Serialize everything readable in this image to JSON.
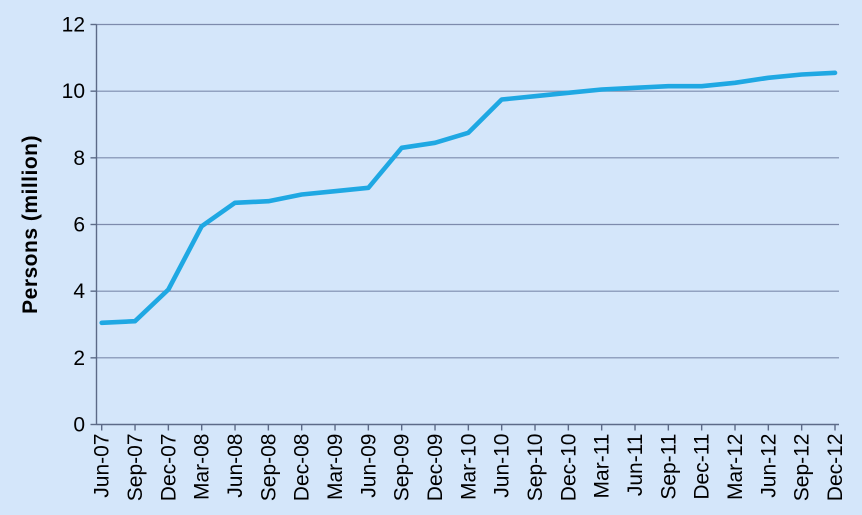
{
  "chart_data": {
    "type": "line",
    "title": "",
    "ylabel": "Persons (million)",
    "xlabel": "",
    "categories": [
      "Jun-07",
      "Sep-07",
      "Dec-07",
      "Mar-08",
      "Jun-08",
      "Sep-08",
      "Dec-08",
      "Mar-09",
      "Jun-09",
      "Sep-09",
      "Dec-09",
      "Mar-10",
      "Jun-10",
      "Sep-10",
      "Dec-10",
      "Mar-11",
      "Jun-11",
      "Sep-11",
      "Dec-11",
      "Mar-12",
      "Jun-12",
      "Sep-12",
      "Dec-12"
    ],
    "series": [
      {
        "name": "Persons (million)",
        "values": [
          3.05,
          3.1,
          4.05,
          5.95,
          6.65,
          6.7,
          6.9,
          7.0,
          7.1,
          8.3,
          8.45,
          8.75,
          9.75,
          9.85,
          9.95,
          10.05,
          10.1,
          10.15,
          10.15,
          10.25,
          10.4,
          10.5,
          10.55
        ]
      }
    ],
    "ylim": [
      0,
      12
    ],
    "yticks": [
      0,
      2,
      4,
      6,
      8,
      10,
      12
    ],
    "ytick_step": 2,
    "grid": "horizontal",
    "legend": "none",
    "x_label_rotation": -90,
    "colors": {
      "line": "#1FA8E3",
      "background": "#D4E6FA",
      "gridline": "#7D8BAC",
      "axis": "#5C6A87",
      "text": "#000000"
    }
  }
}
